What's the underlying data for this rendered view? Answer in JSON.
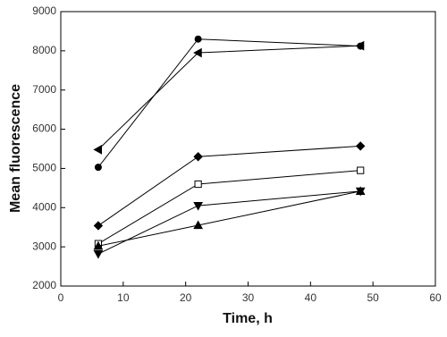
{
  "chart_data": {
    "type": "line",
    "x_label": "Time, h",
    "y_label": "Mean fluorescence",
    "x": [
      6,
      22,
      48
    ],
    "series": [
      {
        "color": "#000000",
        "marker": "circle",
        "values": [
          5030,
          8300,
          8120
        ]
      },
      {
        "color": "#000000",
        "marker": "triangle-left",
        "values": [
          5480,
          7950,
          8130
        ]
      },
      {
        "color": "#000000",
        "marker": "diamond",
        "values": [
          3540,
          5300,
          5570
        ]
      },
      {
        "color": "#000000",
        "marker": "square-open",
        "values": [
          3080,
          4600,
          4950
        ]
      },
      {
        "color": "#000000",
        "marker": "triangle-down",
        "values": [
          2820,
          4050,
          4420
        ]
      },
      {
        "color": "#000000",
        "marker": "triangle-up",
        "values": [
          3020,
          3550,
          4420
        ]
      }
    ],
    "xlim": [
      0,
      60
    ],
    "xticks": [
      0,
      10,
      20,
      30,
      40,
      50,
      60
    ],
    "ylim": [
      2000,
      9000
    ],
    "yticks": [
      2000,
      3000,
      4000,
      5000,
      6000,
      7000,
      8000,
      9000
    ]
  }
}
